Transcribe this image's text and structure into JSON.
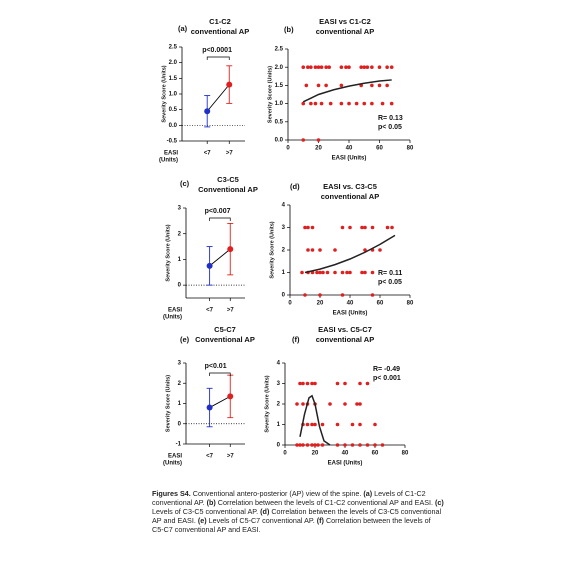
{
  "chart_data": [
    {
      "type": "dotplot",
      "label": "(a)",
      "title": [
        "C1-C2",
        "conventional AP"
      ],
      "ylabel": "Severity Score (Units)",
      "xlabel": [
        "EASI",
        "(Units)"
      ],
      "categories": [
        "<7",
        ">7"
      ],
      "values": [
        0.45,
        1.3
      ],
      "errors": [
        0.5,
        0.6
      ],
      "colors": [
        "#1f2fc8",
        "#e02020"
      ],
      "ylim": [
        -0.5,
        2.5
      ],
      "yticks": [
        -0.5,
        {
          "value": 0,
          "label": "0.0"
        },
        0.5,
        {
          "value": 1,
          "label": "1.0"
        },
        1.5,
        {
          "value": 2,
          "label": "2.0"
        },
        2.5
      ],
      "annotation": "p<0.0001",
      "hline": 0
    },
    {
      "type": "scatter",
      "label": "(b)",
      "title": [
        "EASI vs C1-C2",
        "conventional AP"
      ],
      "ylabel": "Severity Score (Units)",
      "xlabel": "EASI (Units)",
      "color": "#e02020",
      "x": [
        10,
        13,
        15,
        18,
        20,
        22,
        25,
        27,
        35,
        38,
        40,
        48,
        50,
        52,
        55,
        60,
        65,
        68,
        12,
        20,
        25,
        35,
        48,
        55,
        60,
        65,
        10,
        15,
        18,
        22,
        28,
        35,
        40,
        45,
        50,
        55,
        62,
        68,
        10,
        20
      ],
      "values": [
        2,
        2,
        2,
        2,
        2,
        2,
        2,
        2,
        2,
        2,
        2,
        2,
        2,
        2,
        2,
        2,
        2,
        2,
        1.5,
        1.5,
        1.5,
        1.5,
        1.5,
        1.5,
        1.5,
        1.5,
        1,
        1,
        1,
        1,
        1,
        1,
        1,
        1,
        1,
        1,
        1,
        1,
        0,
        0
      ],
      "fit": {
        "color": "#222222",
        "x": [
          10,
          15,
          20,
          30,
          40,
          50,
          60,
          68
        ],
        "values": [
          1.05,
          1.15,
          1.25,
          1.38,
          1.48,
          1.56,
          1.62,
          1.65
        ]
      },
      "annotation": [
        "R= 0.13",
        "p< 0.05"
      ],
      "annotation_corner": "bottom-right",
      "xlim": [
        0,
        80
      ],
      "xticks": [
        0,
        20,
        40,
        60,
        80
      ],
      "ylim": [
        0,
        2.5
      ],
      "yticks": [
        {
          "value": 0,
          "label": "0.0"
        },
        0.5,
        {
          "value": 1,
          "label": "1.0"
        },
        1.5,
        {
          "value": 2,
          "label": "2.0"
        },
        2.5
      ]
    },
    {
      "type": "dotplot",
      "label": "(c)",
      "title": [
        "C3-C5",
        "Conventional AP"
      ],
      "ylabel": "Severity Score (Units)",
      "xlabel": [
        "EASI",
        "(Units)"
      ],
      "categories": [
        "<7",
        ">7"
      ],
      "values": [
        0.75,
        1.4
      ],
      "errors": [
        0.75,
        1.0
      ],
      "colors": [
        "#1f2fc8",
        "#e02020"
      ],
      "ylim": [
        -0.5,
        3
      ],
      "yticks": [
        0,
        1,
        2,
        3
      ],
      "annotation": "p<0.007",
      "hline": 0
    },
    {
      "type": "scatter",
      "label": "(d)",
      "title": [
        "EASI vs. C3-C5",
        "conventional AP"
      ],
      "ylabel": "Severity Score (Units)",
      "xlabel": "EASI (Units)",
      "color": "#e02020",
      "x": [
        10,
        12,
        15,
        35,
        40,
        48,
        50,
        55,
        65,
        68,
        12,
        15,
        20,
        30,
        50,
        55,
        60,
        8,
        12,
        15,
        18,
        20,
        22,
        25,
        30,
        35,
        38,
        40,
        48,
        50,
        55,
        10,
        20,
        35,
        55
      ],
      "values": [
        3,
        3,
        3,
        3,
        3,
        3,
        3,
        3,
        3,
        3,
        2,
        2,
        2,
        2,
        2,
        2,
        2,
        1,
        1,
        1,
        1,
        1,
        1,
        1,
        1,
        1,
        1,
        1,
        1,
        1,
        1,
        0,
        0,
        0,
        0
      ],
      "fit": {
        "color": "#222222",
        "x": [
          10,
          20,
          30,
          40,
          50,
          60,
          70
        ],
        "values": [
          1.0,
          1.15,
          1.35,
          1.6,
          1.9,
          2.25,
          2.65
        ]
      },
      "annotation": [
        "R= 0.11",
        "p< 0.05"
      ],
      "annotation_corner": "bottom-right",
      "xlim": [
        0,
        80
      ],
      "xticks": [
        0,
        20,
        40,
        60,
        80
      ],
      "ylim": [
        0,
        4
      ],
      "yticks": [
        0,
        1,
        2,
        3,
        4
      ]
    },
    {
      "type": "dotplot",
      "label": "(e)",
      "title": [
        "C5-C7",
        "Conventional AP"
      ],
      "ylabel": "Severity Score (Units)",
      "xlabel": [
        "EASI",
        "(Units)"
      ],
      "categories": [
        "<7",
        ">7"
      ],
      "values": [
        0.8,
        1.35
      ],
      "errors": [
        0.95,
        1.05
      ],
      "colors": [
        "#1f2fc8",
        "#e02020"
      ],
      "ylim": [
        -1,
        3
      ],
      "yticks": [
        -1,
        0,
        1,
        2,
        3
      ],
      "annotation": "p<0.01",
      "hline": 0
    },
    {
      "type": "scatter",
      "label": "(f)",
      "title": [
        "EASI vs. C5-C7",
        "conventional AP"
      ],
      "ylabel": "Severity Score (Units)",
      "xlabel": "EASI (Units)",
      "color": "#e02020",
      "x": [
        10,
        12,
        15,
        18,
        20,
        35,
        40,
        50,
        55,
        8,
        12,
        15,
        20,
        30,
        40,
        48,
        50,
        12,
        15,
        18,
        20,
        25,
        35,
        45,
        50,
        60,
        8,
        10,
        12,
        15,
        18,
        20,
        22,
        25,
        35,
        40,
        45,
        50,
        55,
        60,
        65
      ],
      "values": [
        3,
        3,
        3,
        3,
        3,
        3,
        3,
        3,
        3,
        2,
        2,
        2,
        2,
        2,
        2,
        2,
        2,
        1,
        1,
        1,
        1,
        1,
        1,
        1,
        1,
        1,
        0,
        0,
        0,
        0,
        0,
        0,
        0,
        0,
        0,
        0,
        0,
        0,
        0,
        0,
        0
      ],
      "fit": {
        "color": "#222222",
        "x": [
          10,
          13,
          16,
          18,
          20,
          23,
          26,
          30
        ],
        "values": [
          0.4,
          1.5,
          2.3,
          2.4,
          2.0,
          0.9,
          0.2,
          0
        ]
      },
      "annotation": [
        "R= -0.49",
        "p< 0.001"
      ],
      "annotation_corner": "top-right",
      "xlim": [
        0,
        80
      ],
      "xticks": [
        0,
        20,
        40,
        60,
        80
      ],
      "ylim": [
        0,
        4
      ],
      "yticks": [
        0,
        1,
        2,
        3,
        4
      ]
    }
  ],
  "caption": {
    "label": "Figures S4.",
    "parts": [
      " Conventional antero-posterior (AP) view of the spine. ",
      "(a)",
      " Levels of C1-C2 conventional AP. ",
      "(b)",
      " Correlation between the levels of C1-C2 conventional AP and EASI. ",
      "(c)",
      " Levels of C3-C5 conventional AP. ",
      "(d)",
      " Correlation between the levels of C3-C5 conventional AP and EASI. ",
      "(e)",
      " Levels of C5-C7 conventional AP. ",
      "(f)",
      " Correlation between the levels of C5-C7 conventional AP and EASI."
    ]
  }
}
